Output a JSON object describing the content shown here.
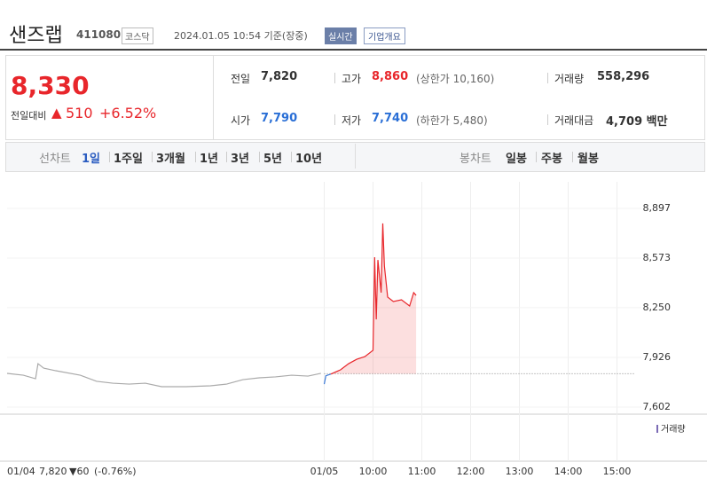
{
  "header": {
    "name": "샌즈랩",
    "code": "411080",
    "market": "코스닥",
    "timestamp": "2024.01.05 10:54 기준(장중)",
    "realtime": "실시간",
    "company_info": "기업개요"
  },
  "price": {
    "current": "8,330",
    "change_label": "전일대비",
    "change_arrow": "▲",
    "change": "510",
    "change_pct": "+6.52%"
  },
  "stats": [
    {
      "label": "전일",
      "value": "7,820"
    },
    {
      "label": "고가",
      "value": "8,860",
      "note": "(상한가 10,160)"
    },
    {
      "label": "거래량",
      "value": "558,296"
    },
    {
      "label": "시가",
      "value": "7,790"
    },
    {
      "label": "저가",
      "value": "7,740",
      "note": "(하한가 5,480)"
    },
    {
      "label": "거래대금",
      "value": "4,709 백만"
    }
  ],
  "tabs": {
    "line_label": "선차트",
    "line_periods": [
      "1일",
      "1주일",
      "3개월",
      "1년",
      "3년",
      "5년",
      "10년"
    ],
    "candle_label": "봉차트",
    "candle_periods": [
      "일봉",
      "주봉",
      "월봉"
    ]
  },
  "chart_data": {
    "type": "line",
    "xlim": [
      0,
      780
    ],
    "ylim": [
      7556,
      9070
    ],
    "xticks": [
      {
        "value": 0,
        "label": "01/04"
      },
      {
        "value": 390,
        "label": "01/05"
      },
      {
        "value": 450,
        "label": "10:00"
      },
      {
        "value": 510,
        "label": "11:00"
      },
      {
        "value": 570,
        "label": "12:00"
      },
      {
        "value": 630,
        "label": "13:00"
      },
      {
        "value": 690,
        "label": "14:00"
      },
      {
        "value": 750,
        "label": "15:00"
      }
    ],
    "yticks": [
      {
        "value": 7602,
        "label": "7,602"
      },
      {
        "value": 7926,
        "label": "7,926"
      },
      {
        "value": 8250,
        "label": "8,250"
      },
      {
        "value": 8573,
        "label": "8,573"
      },
      {
        "value": 8897,
        "label": "8,897"
      }
    ],
    "reference_line": 7820,
    "volume_label": "거래량",
    "prev_day": {
      "close": "7,820",
      "change": "▼60",
      "change_pct": "(-0.76%)"
    },
    "series": [
      {
        "color": "#aaaaaa",
        "x": [
          0,
          20,
          35,
          38,
          45,
          60,
          90,
          110,
          130,
          150,
          170,
          190,
          220,
          250,
          270,
          290,
          310,
          330,
          350,
          370,
          386
        ],
        "values": [
          7822,
          7810,
          7787,
          7885,
          7856,
          7839,
          7810,
          7770,
          7758,
          7752,
          7758,
          7735,
          7735,
          7741,
          7752,
          7781,
          7793,
          7799,
          7810,
          7804,
          7822
        ]
      },
      {
        "color": "#3a78d6",
        "x": [
          390,
          392,
          398
        ],
        "values": [
          7752,
          7806,
          7817
        ]
      },
      {
        "color": "#e8262b",
        "area": true,
        "x": [
          398,
          410,
          420,
          430,
          440,
          450,
          452,
          454,
          456,
          460,
          462,
          464,
          468,
          475,
          485,
          495,
          500,
          503
        ],
        "values": [
          7817,
          7845,
          7885,
          7914,
          7931,
          7972,
          8579,
          8174,
          8561,
          8348,
          8799,
          8521,
          8319,
          8290,
          8301,
          8261,
          8348,
          8330
        ]
      }
    ]
  }
}
